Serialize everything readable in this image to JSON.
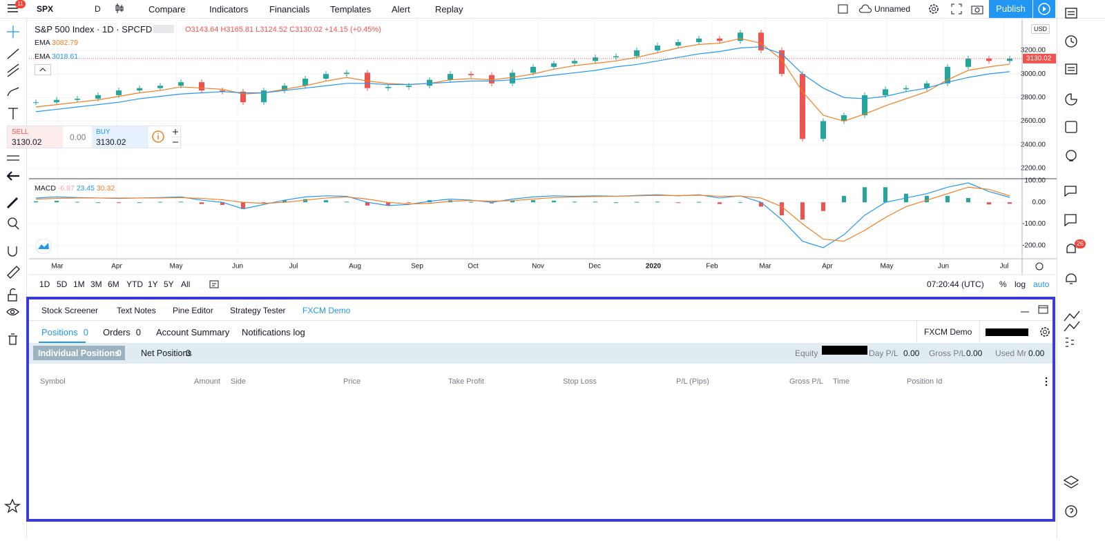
{
  "toolbar": {
    "symbol": "SPX",
    "interval": "D",
    "badge": "11",
    "items": [
      "Compare",
      "Indicators",
      "Financials",
      "Templates",
      "Alert",
      "Replay"
    ],
    "layout": "Unnamed",
    "publish": "Publish",
    "alerts_badge": "26"
  },
  "legend": {
    "title": "S&P 500 Index · 1D · SPCFD",
    "open": "O3143.64",
    "high": "H3165.81",
    "low": "L3124.52",
    "close": "C3130.02",
    "change": "+14.15 (+0.45%)"
  },
  "trade": {
    "sell": "SELL",
    "sell_price": "3130.02",
    "spread": "0.00",
    "buy": "BUY",
    "buy_price": "3130.02"
  },
  "chart": {
    "type": "candlestick",
    "currency": "USD",
    "closes": [
      2760,
      2780,
      2790,
      2820,
      2860,
      2880,
      2900,
      2930,
      2860,
      2850,
      2760,
      2860,
      2900,
      2960,
      3000,
      3010,
      2880,
      2890,
      2900,
      2950,
      3000,
      2990,
      2920,
      3010,
      3060,
      3090,
      3110,
      3140,
      3150,
      3200,
      3240,
      3270,
      3300,
      3280,
      3350,
      3200,
      3000,
      2450,
      2600,
      2650,
      2820,
      2870,
      2880,
      2920,
      3060,
      3130,
      3110,
      3130
    ],
    "up_color": "#26a69a",
    "down_color": "#ef5350",
    "ema_fast": {
      "name": "EMA",
      "value": "3082.79",
      "color": "#f57c1f",
      "values": [
        2720,
        2740,
        2760,
        2780,
        2810,
        2840,
        2860,
        2890,
        2880,
        2870,
        2830,
        2840,
        2870,
        2900,
        2940,
        2970,
        2940,
        2920,
        2910,
        2920,
        2950,
        2960,
        2950,
        2970,
        3000,
        3040,
        3070,
        3090,
        3110,
        3140,
        3180,
        3220,
        3250,
        3260,
        3300,
        3260,
        3120,
        2850,
        2650,
        2600,
        2660,
        2730,
        2790,
        2850,
        2950,
        3030,
        3060,
        3083
      ]
    },
    "ema_slow": {
      "name": "EMA",
      "value": "3018.61",
      "color": "#2196f3",
      "values": [
        2680,
        2700,
        2720,
        2740,
        2760,
        2790,
        2810,
        2830,
        2840,
        2850,
        2840,
        2840,
        2860,
        2880,
        2900,
        2920,
        2920,
        2910,
        2910,
        2920,
        2930,
        2940,
        2940,
        2950,
        2970,
        2990,
        3010,
        3030,
        3060,
        3080,
        3110,
        3140,
        3170,
        3190,
        3220,
        3230,
        3170,
        3000,
        2880,
        2800,
        2790,
        2810,
        2850,
        2880,
        2930,
        2970,
        3000,
        3019
      ]
    },
    "last_price": 3130.02,
    "ylim": [
      2118,
      3451
    ],
    "yticks": [
      {
        "value": 2200,
        "label": "2200.00"
      },
      {
        "value": 2400,
        "label": "2400.00"
      },
      {
        "value": 2600,
        "label": "2600.00"
      },
      {
        "value": 2800,
        "label": "2800.00"
      },
      {
        "value": 3000,
        "label": "3000.00"
      },
      {
        "value": 3200,
        "label": "3200.00"
      }
    ],
    "months": [
      "Mar",
      "Apr",
      "May",
      "Jun",
      "Jul",
      "Aug",
      "Sep",
      "Oct",
      "Nov",
      "Dec",
      "2020",
      "Feb",
      "Mar",
      "Apr",
      "May",
      "Jun",
      "Jul"
    ]
  },
  "macd": {
    "name": "MACD",
    "histogram_value": "-6.87",
    "macd_value": "23.45",
    "signal_value": "30.32",
    "histogram": [
      5,
      7,
      2,
      0,
      -2,
      0,
      2,
      3,
      -8,
      -12,
      -30,
      -5,
      10,
      15,
      10,
      3,
      -15,
      -15,
      -2,
      10,
      10,
      2,
      -5,
      7,
      10,
      8,
      3,
      3,
      0,
      2,
      3,
      -1,
      2,
      -8,
      1,
      -20,
      -60,
      -80,
      -40,
      30,
      70,
      70,
      40,
      30,
      30,
      20,
      -10,
      -7
    ],
    "macd": [
      20,
      25,
      22,
      20,
      18,
      20,
      22,
      25,
      10,
      0,
      -30,
      -10,
      10,
      25,
      30,
      28,
      0,
      -15,
      -10,
      5,
      15,
      10,
      0,
      15,
      25,
      30,
      28,
      30,
      28,
      32,
      35,
      30,
      35,
      20,
      30,
      0,
      -80,
      -180,
      -210,
      -150,
      -60,
      0,
      20,
      40,
      70,
      90,
      50,
      23
    ],
    "signal": [
      15,
      18,
      20,
      20,
      20,
      20,
      20,
      22,
      18,
      12,
      0,
      -5,
      0,
      10,
      20,
      25,
      15,
      0,
      -8,
      -5,
      5,
      8,
      5,
      8,
      15,
      22,
      25,
      27,
      28,
      30,
      32,
      31,
      33,
      28,
      29,
      20,
      -20,
      -100,
      -170,
      -180,
      -130,
      -70,
      -20,
      10,
      40,
      70,
      60,
      30
    ],
    "macd_color": "#2196f3",
    "signal_color": "#f57c1f",
    "ylim": [
      -258,
      106
    ],
    "yticks": [
      {
        "value": 100,
        "label": "100.00"
      },
      {
        "value": 0,
        "label": "0.00"
      },
      {
        "value": -100,
        "label": "-100.00"
      },
      {
        "value": -200,
        "label": "-200.00"
      }
    ]
  },
  "ranges": [
    "1D",
    "5D",
    "1M",
    "3M",
    "6M",
    "YTD",
    "1Y",
    "5Y",
    "All"
  ],
  "clock": "07:20:44 (UTC)",
  "scale_options": [
    "%",
    "log",
    "auto"
  ],
  "panel": {
    "tabs": [
      "Stock Screener",
      "Text Notes",
      "Pine Editor",
      "Strategy Tester",
      "FXCM Demo"
    ],
    "subtabs": [
      {
        "label": "Positions",
        "count": "0"
      },
      {
        "label": "Orders",
        "count": "0"
      },
      {
        "label": "Account Summary"
      },
      {
        "label": "Notifications log"
      }
    ],
    "broker": "FXCM Demo",
    "filters": [
      {
        "label": "Individual Positions",
        "count": "0"
      },
      {
        "label": "Net Positions",
        "count": "0"
      }
    ],
    "stats": [
      {
        "label": "Equity"
      },
      {
        "label": "Day P/L",
        "value": "0.00"
      },
      {
        "label": "Gross P/L",
        "value": "0.00"
      },
      {
        "label": "Used Mr",
        "value": "0.00"
      }
    ],
    "columns": [
      "Symbol",
      "Amount",
      "Side",
      "Price",
      "Take Profit",
      "Stop Loss",
      "P/L (Pips)",
      "Gross P/L",
      "Time",
      "Position Id"
    ]
  }
}
